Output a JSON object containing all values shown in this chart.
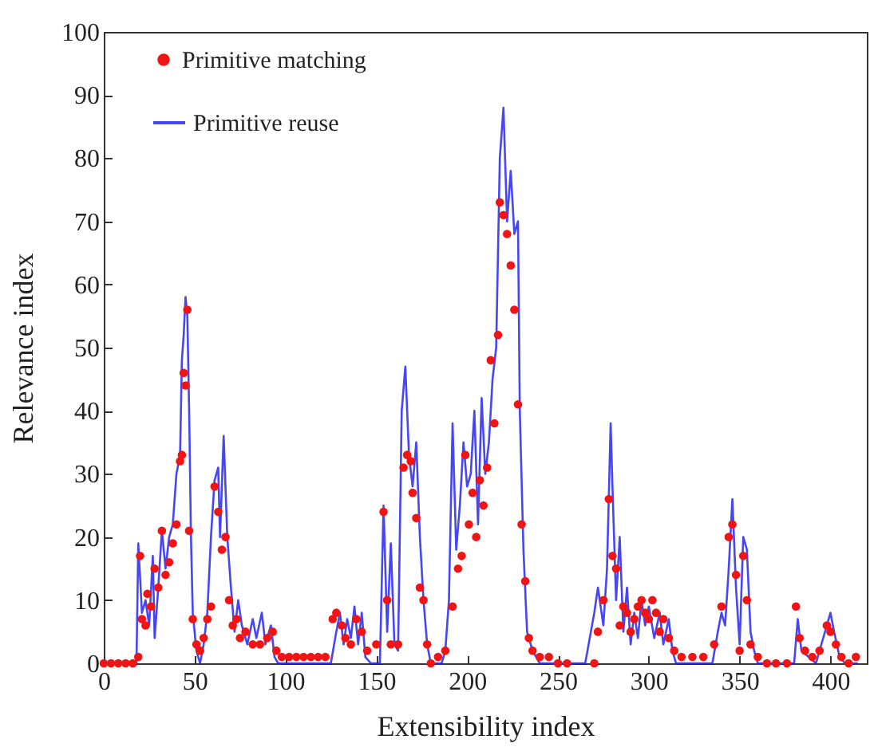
{
  "chart_data": {
    "type": "line",
    "xlabel": "Extensibility index",
    "ylabel": "Relevance index",
    "xlim": [
      0,
      420
    ],
    "ylim": [
      0,
      100
    ],
    "xticks": [
      0,
      50,
      100,
      150,
      200,
      250,
      300,
      350,
      400
    ],
    "yticks": [
      0,
      10,
      20,
      30,
      40,
      50,
      60,
      70,
      80,
      90,
      100
    ],
    "legend": "top left",
    "series": [
      {
        "name": "Primitive matching",
        "type": "scatter",
        "marker": "circle",
        "color": "#f01414",
        "x": [
          0,
          4,
          8,
          12,
          16,
          19,
          20,
          21,
          23,
          24,
          26,
          28,
          30,
          32,
          34,
          36,
          38,
          40,
          42,
          43,
          44,
          45,
          46,
          47,
          49,
          51,
          53,
          55,
          57,
          59,
          61,
          63,
          65,
          67,
          69,
          71,
          73,
          75,
          78,
          82,
          86,
          90,
          93,
          95,
          98,
          102,
          106,
          110,
          114,
          118,
          122,
          126,
          128,
          131,
          133,
          136,
          139,
          142,
          145,
          150,
          154,
          156,
          158,
          162,
          165,
          167,
          169,
          170,
          172,
          174,
          176,
          178,
          180,
          184,
          188,
          192,
          195,
          197,
          199,
          201,
          203,
          205,
          207,
          209,
          211,
          213,
          215,
          217,
          218,
          220,
          222,
          224,
          226,
          228,
          230,
          232,
          234,
          236,
          240,
          245,
          250,
          255,
          270,
          272,
          275,
          278,
          280,
          282,
          284,
          286,
          288,
          290,
          292,
          294,
          296,
          298,
          300,
          302,
          304,
          306,
          308,
          311,
          314,
          318,
          324,
          330,
          336,
          340,
          344,
          346,
          348,
          350,
          352,
          354,
          356,
          360,
          365,
          370,
          376,
          381,
          383,
          386,
          390,
          394,
          398,
          400,
          403,
          406,
          410,
          414
        ],
        "values": [
          0,
          0,
          0,
          0,
          0,
          1,
          17,
          7,
          6,
          11,
          9,
          15,
          12,
          21,
          14,
          16,
          19,
          22,
          32,
          33,
          46,
          44,
          56,
          21,
          7,
          3,
          2,
          4,
          7,
          9,
          28,
          24,
          18,
          20,
          10,
          6,
          7,
          4,
          5,
          3,
          3,
          4,
          5,
          2,
          1,
          1,
          1,
          1,
          1,
          1,
          1,
          7,
          8,
          6,
          4,
          3,
          7,
          5,
          2,
          3,
          24,
          10,
          3,
          3,
          31,
          33,
          32,
          27,
          23,
          12,
          10,
          3,
          0,
          1,
          2,
          9,
          15,
          17,
          33,
          22,
          27,
          20,
          29,
          25,
          31,
          48,
          38,
          52,
          73,
          71,
          68,
          63,
          56,
          41,
          22,
          13,
          4,
          2,
          1,
          1,
          0,
          0,
          0,
          5,
          10,
          26,
          17,
          15,
          6,
          9,
          8,
          5,
          7,
          9,
          10,
          8,
          7,
          10,
          8,
          5,
          7,
          4,
          2,
          1,
          1,
          1,
          3,
          9,
          20,
          22,
          14,
          2,
          17,
          10,
          3,
          1,
          0,
          0,
          0,
          9,
          4,
          2,
          1,
          2,
          6,
          5,
          3,
          1,
          0,
          1
        ]
      },
      {
        "name": "Primitive reuse",
        "color": "#2626f0",
        "x": [
          0,
          18,
          19,
          21,
          23,
          25,
          27,
          28,
          30,
          32,
          34,
          36,
          38,
          40,
          42,
          43,
          44,
          45,
          46,
          47,
          48,
          49,
          51,
          53,
          55,
          57,
          59,
          61,
          63,
          64,
          66,
          68,
          70,
          72,
          74,
          76,
          79,
          82,
          84,
          87,
          89,
          92,
          94,
          96,
          100,
          120,
          125,
          128,
          130,
          132,
          134,
          136,
          138,
          140,
          142,
          144,
          147,
          152,
          154,
          156,
          158,
          160,
          162,
          164,
          166,
          168,
          170,
          172,
          174,
          176,
          178,
          180,
          186,
          188,
          190,
          192,
          194,
          196,
          198,
          200,
          202,
          204,
          206,
          208,
          210,
          212,
          214,
          216,
          218,
          220,
          222,
          224,
          226,
          228,
          229,
          231,
          233,
          236,
          240,
          255,
          265,
          270,
          272,
          275,
          277,
          279,
          280,
          282,
          284,
          286,
          288,
          290,
          292,
          294,
          296,
          298,
          300,
          303,
          306,
          308,
          311,
          313,
          315,
          320,
          335,
          338,
          340,
          342,
          344,
          346,
          348,
          350,
          352,
          354,
          356,
          358,
          360,
          380,
          382,
          384,
          388,
          392,
          395,
          398,
          400,
          402,
          405,
          408,
          415
        ],
        "values": [
          0,
          0,
          19,
          8,
          10,
          6,
          17,
          4,
          12,
          21,
          15,
          20,
          22,
          30,
          33,
          48,
          52,
          58,
          55,
          40,
          20,
          8,
          2,
          0,
          3,
          8,
          20,
          29,
          31,
          20,
          36,
          20,
          12,
          5,
          10,
          6,
          3,
          7,
          4,
          8,
          3,
          6,
          1,
          0,
          0,
          0,
          0,
          5,
          8,
          3,
          7,
          4,
          9,
          3,
          8,
          1,
          0,
          0,
          25,
          5,
          19,
          3,
          2,
          40,
          47,
          33,
          28,
          35,
          20,
          10,
          3,
          0,
          0,
          2,
          10,
          38,
          18,
          25,
          35,
          28,
          30,
          40,
          22,
          42,
          30,
          35,
          45,
          50,
          80,
          88,
          70,
          78,
          68,
          70,
          40,
          18,
          5,
          2,
          0,
          0,
          0,
          8,
          12,
          6,
          15,
          38,
          28,
          10,
          20,
          5,
          12,
          3,
          8,
          4,
          10,
          6,
          9,
          4,
          8,
          3,
          7,
          2,
          0,
          0,
          0,
          5,
          8,
          6,
          15,
          26,
          12,
          3,
          20,
          18,
          5,
          2,
          0,
          0,
          7,
          2,
          1,
          0,
          3,
          6,
          8,
          5,
          1,
          0,
          0
        ]
      }
    ]
  }
}
